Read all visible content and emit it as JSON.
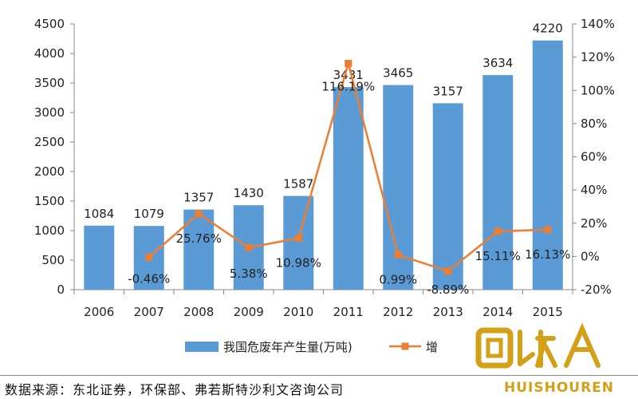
{
  "chart_data": {
    "type": "bar+line",
    "categories": [
      "2006",
      "2007",
      "2008",
      "2009",
      "2010",
      "2011",
      "2012",
      "2013",
      "2014",
      "2015"
    ],
    "series": [
      {
        "name": "我国危废年产生量(万吨)",
        "type": "bar",
        "axis": "left",
        "color": "#5B9BD5",
        "values": [
          1084,
          1079,
          1357,
          1430,
          1587,
          3431,
          3465,
          3157,
          3634,
          4220
        ]
      },
      {
        "name": "增",
        "type": "line",
        "axis": "right",
        "color": "#ED7D31",
        "values": [
          null,
          -0.46,
          25.76,
          5.38,
          10.98,
          116.19,
          0.99,
          -8.89,
          15.11,
          16.13
        ],
        "labels": [
          "",
          "-0.46%",
          "25.76%",
          "5.38%",
          "10.98%",
          "116.19%",
          "0.99%",
          "-8.89%",
          "15.11%",
          "16.13%"
        ]
      }
    ],
    "bar_labels": [
      "1084",
      "1079",
      "1357",
      "1430",
      "1587",
      "3431",
      "3465",
      "3157",
      "3634",
      "4220"
    ],
    "left_axis": {
      "ylim": [
        0,
        4500
      ],
      "ticks": [
        "0",
        "500",
        "1000",
        "1500",
        "2000",
        "2500",
        "3000",
        "3500",
        "4000",
        "4500"
      ]
    },
    "right_axis": {
      "ylim": [
        -20,
        140
      ],
      "ticks": [
        "-20%",
        "0%",
        "20%",
        "40%",
        "60%",
        "80%",
        "100%",
        "120%",
        "140%"
      ]
    },
    "grid": false,
    "legend": "bottom"
  },
  "source_text": "数据来源：东北证券，环保部、弗若斯特沙利文咨询公司",
  "watermark": {
    "text": "HUISHOUREN",
    "color": "#d4a017"
  }
}
